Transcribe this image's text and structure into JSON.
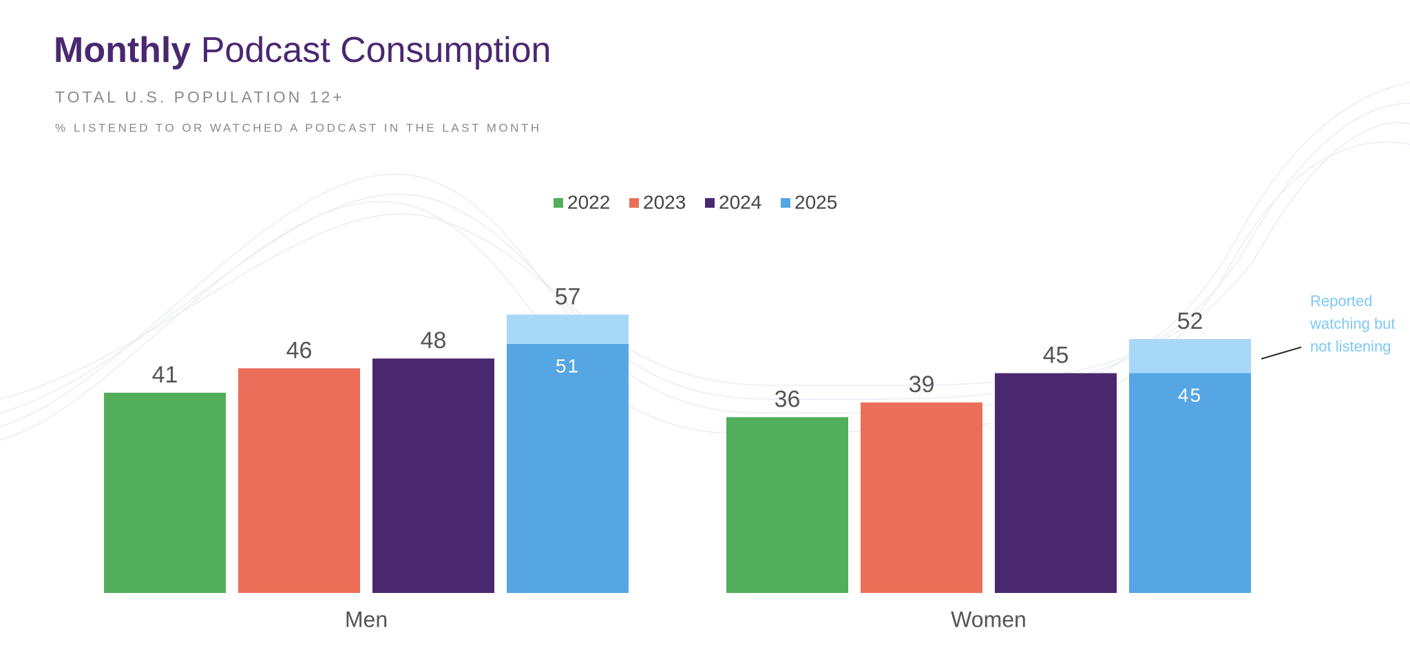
{
  "chart_data": {
    "type": "bar",
    "title_bold": "Monthly",
    "title": "Podcast Consumption",
    "subtitle": "TOTAL U.S. POPULATION 12+",
    "description": "% LISTENED TO OR WATCHED A PODCAST IN THE LAST MONTH",
    "categories": [
      "Men",
      "Women"
    ],
    "series": [
      {
        "name": "2022",
        "color": "#52ae5b",
        "values": [
          41,
          36
        ]
      },
      {
        "name": "2023",
        "color": "#eb6f58",
        "values": [
          46,
          39
        ]
      },
      {
        "name": "2024",
        "color": "#4a2870",
        "values": [
          48,
          45
        ]
      },
      {
        "name": "2025",
        "color": "#55a6e2",
        "values": [
          51,
          45
        ],
        "extra": {
          "color": "#a8d8f8",
          "values": [
            6,
            7
          ],
          "totals": [
            57,
            52
          ]
        }
      }
    ],
    "annotation": [
      "Reported",
      "watching but",
      "not listening"
    ],
    "annotation_color": "#7ec8f5",
    "ylim": [
      0,
      100
    ],
    "legend": "top"
  }
}
